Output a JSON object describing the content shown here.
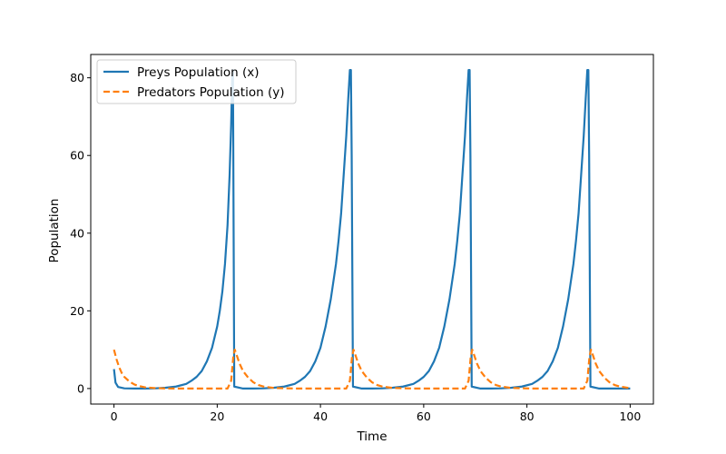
{
  "chart_data": {
    "type": "line",
    "title": "",
    "xlabel": "Time",
    "ylabel": "Population",
    "xlim": [
      -4.5,
      104.5
    ],
    "ylim": [
      -4,
      86
    ],
    "xticks": [
      0,
      20,
      40,
      60,
      80,
      100
    ],
    "yticks": [
      0,
      20,
      40,
      60,
      80
    ],
    "grid": false,
    "legend_position": "top-left",
    "series": [
      {
        "name": "Preys Population (x)",
        "color": "#1f77b4",
        "style": "solid",
        "x": [
          0,
          0.3,
          0.8,
          2,
          4,
          6,
          8,
          10,
          12,
          14,
          15,
          16,
          17,
          18,
          19,
          20,
          20.5,
          21,
          21.5,
          22,
          22.4,
          22.7,
          22.9,
          23.05,
          23.3,
          25,
          27,
          29,
          31,
          33,
          35,
          36,
          37,
          38,
          39,
          40,
          41,
          42,
          43,
          43.5,
          44,
          44.5,
          45,
          45.4,
          45.7,
          45.9,
          46.05,
          46.3,
          48,
          50,
          52,
          54,
          56,
          58,
          59,
          60,
          61,
          62,
          63,
          64,
          65,
          66,
          66.5,
          67,
          67.5,
          68,
          68.4,
          68.7,
          68.9,
          69.05,
          69.3,
          71,
          73,
          75,
          77,
          79,
          81,
          82,
          83,
          84,
          85,
          86,
          87,
          88,
          89,
          89.5,
          90,
          90.5,
          91,
          91.4,
          91.7,
          91.9,
          92.05,
          92.3,
          94,
          96,
          98,
          100
        ],
        "y": [
          5,
          1.5,
          0.4,
          0.05,
          0,
          0,
          0.05,
          0.2,
          0.5,
          1.2,
          2,
          3,
          4.5,
          7,
          10.5,
          16,
          20,
          25,
          32,
          42,
          55,
          68,
          80,
          82,
          0.5,
          0,
          0,
          0.05,
          0.2,
          0.5,
          1.2,
          2,
          3,
          4.5,
          7,
          10.5,
          16,
          23,
          32,
          38,
          45,
          55,
          65,
          75,
          82,
          82,
          60,
          0.5,
          0,
          0,
          0.05,
          0.2,
          0.5,
          1.2,
          2,
          3,
          4.5,
          7,
          10.5,
          16,
          23,
          32,
          38,
          45,
          55,
          65,
          75,
          82,
          82,
          60,
          0.5,
          0,
          0,
          0.05,
          0.2,
          0.5,
          1.2,
          2,
          3,
          4.5,
          7,
          10.5,
          16,
          23,
          32,
          38,
          45,
          55,
          65,
          75,
          82,
          82,
          60,
          0.5,
          0,
          0,
          0,
          0
        ]
      },
      {
        "name": "Predators Population (y)",
        "color": "#ff7f0e",
        "style": "dashed",
        "x": [
          0,
          0.5,
          1,
          1.5,
          2,
          3,
          4,
          5,
          6,
          8,
          10,
          14,
          18,
          22,
          22.7,
          23.1,
          23.4,
          23.8,
          24.3,
          25,
          26,
          27,
          28,
          29,
          31,
          35,
          40,
          45,
          45.7,
          46.1,
          46.4,
          46.8,
          47.3,
          48,
          49,
          50,
          51,
          52,
          54,
          58,
          63,
          68,
          68.7,
          69.1,
          69.4,
          69.8,
          70.3,
          71,
          72,
          73,
          74,
          75,
          77,
          81,
          86,
          91,
          91.7,
          92.1,
          92.4,
          92.8,
          93.3,
          94,
          95,
          96,
          97,
          98,
          100
        ],
        "y": [
          10,
          7.5,
          5.5,
          4,
          3,
          1.8,
          1,
          0.6,
          0.3,
          0.1,
          0.02,
          0,
          0,
          0,
          2,
          8,
          10,
          8.5,
          6.5,
          4.5,
          2.8,
          1.6,
          0.9,
          0.5,
          0.15,
          0,
          0,
          0,
          2,
          8,
          10,
          8.5,
          6.5,
          4.5,
          2.8,
          1.6,
          0.9,
          0.5,
          0.15,
          0,
          0,
          0,
          2,
          8,
          10,
          8.5,
          6.5,
          4.5,
          2.8,
          1.6,
          0.9,
          0.5,
          0.15,
          0,
          0,
          0,
          2,
          8,
          10,
          8.5,
          6.5,
          4.5,
          2.8,
          1.6,
          0.9,
          0.5,
          0.1
        ]
      }
    ]
  }
}
